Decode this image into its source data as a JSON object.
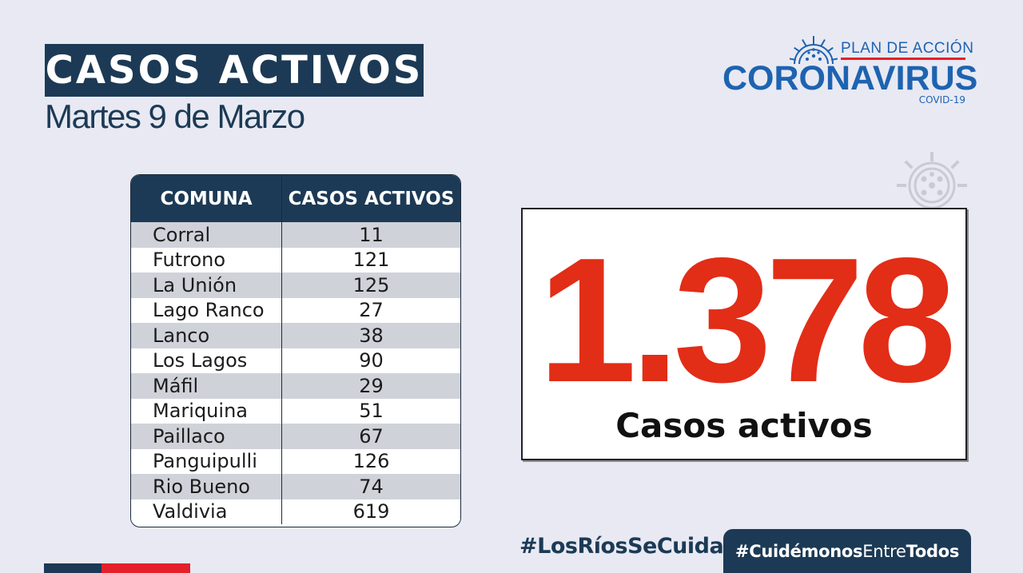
{
  "header": {
    "title": "CASOS ACTIVOS",
    "date": "Martes 9 de Marzo"
  },
  "logo": {
    "plan": "PLAN DE ACCIÓN",
    "name": "CORONAVIRUS",
    "sub": "COVID-19",
    "icon": "virus-icon"
  },
  "table": {
    "headers": [
      "COMUNA",
      "CASOS ACTIVOS"
    ],
    "rows": [
      {
        "comuna": "Corral",
        "casos": "11"
      },
      {
        "comuna": "Futrono",
        "casos": "121"
      },
      {
        "comuna": "La Unión",
        "casos": "125"
      },
      {
        "comuna": "Lago Ranco",
        "casos": "27"
      },
      {
        "comuna": "Lanco",
        "casos": "38"
      },
      {
        "comuna": "Los Lagos",
        "casos": "90"
      },
      {
        "comuna": "Máfil",
        "casos": "29"
      },
      {
        "comuna": "Mariquina",
        "casos": "51"
      },
      {
        "comuna": "Paillaco",
        "casos": "67"
      },
      {
        "comuna": "Panguipulli",
        "casos": "126"
      },
      {
        "comuna": "Rio Bueno",
        "casos": "74"
      },
      {
        "comuna": "Valdivia",
        "casos": "619"
      }
    ]
  },
  "total": {
    "value": "1.378",
    "label": "Casos activos"
  },
  "footer": {
    "hashtag1": "#LosRíosSeCuida",
    "hashtag2_a": "#Cuidémonos",
    "hashtag2_b": "Entre",
    "hashtag2_c": "Todos"
  },
  "colors": {
    "navy": "#1c3a55",
    "red": "#e22d17",
    "logo_blue": "#1e63b0",
    "background": "#e8e9f3"
  }
}
